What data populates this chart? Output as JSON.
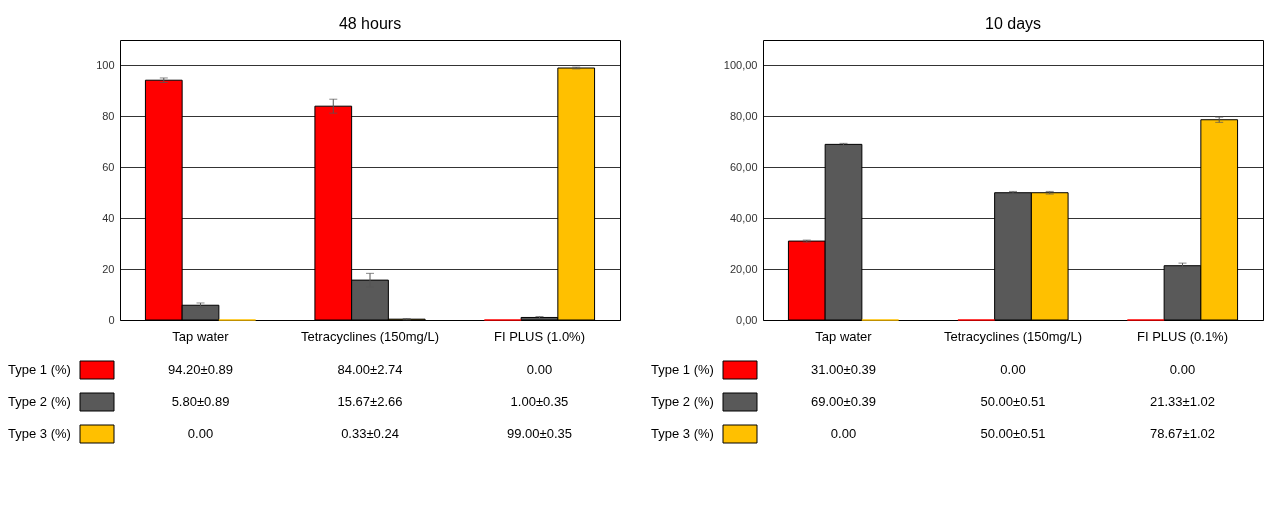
{
  "chart_data": [
    {
      "type": "bar",
      "title": "48 hours",
      "categories": [
        "Tap water",
        "Tetracyclines (150mg/L)",
        "FI PLUS (1.0%)"
      ],
      "ylim": [
        0,
        110
      ],
      "yticks": [
        0,
        20,
        40,
        60,
        80,
        100
      ],
      "grid": "y",
      "legend": "bottom",
      "series": [
        {
          "name": "Type 1 (%)",
          "color": "#ff0000",
          "values": [
            94.2,
            84.0,
            0.0
          ],
          "errors": [
            0.89,
            2.74,
            null
          ],
          "value_labels": [
            "94.20±0.89",
            "84.00±2.74",
            "0.00"
          ]
        },
        {
          "name": "Type 2 (%)",
          "color": "#595959",
          "values": [
            5.8,
            15.67,
            1.0
          ],
          "errors": [
            0.89,
            2.66,
            0.35
          ],
          "value_labels": [
            "5.80±0.89",
            "15.67±2.66",
            "1.00±0.35"
          ]
        },
        {
          "name": "Type 3 (%)",
          "color": "#ffc000",
          "values": [
            0.0,
            0.33,
            99.0
          ],
          "errors": [
            null,
            0.24,
            0.35
          ],
          "value_labels": [
            "0.00",
            "0.33±0.24",
            "99.00±0.35"
          ]
        }
      ]
    },
    {
      "type": "bar",
      "title": "10 days",
      "categories": [
        "Tap water",
        "Tetracyclines (150mg/L)",
        "FI PLUS (0.1%)"
      ],
      "ylim": [
        0,
        110
      ],
      "yticks": [
        {
          "value": 0,
          "label": "0,00"
        },
        {
          "value": 20,
          "label": "20,00"
        },
        {
          "value": 40,
          "label": "40,00"
        },
        {
          "value": 60,
          "label": "60,00"
        },
        {
          "value": 80,
          "label": "80,00"
        },
        {
          "value": 100,
          "label": "100,00"
        }
      ],
      "grid": "y",
      "legend": "bottom",
      "series": [
        {
          "name": "Type 1 (%)",
          "color": "#ff0000",
          "values": [
            31.0,
            0.0,
            0.0
          ],
          "errors": [
            0.39,
            null,
            null
          ],
          "value_labels": [
            "31.00±0.39",
            "0.00",
            "0.00"
          ]
        },
        {
          "name": "Type 2 (%)",
          "color": "#595959",
          "values": [
            69.0,
            50.0,
            21.33
          ],
          "errors": [
            0.39,
            0.51,
            1.02
          ],
          "value_labels": [
            "69.00±0.39",
            "50.00±0.51",
            "21.33±1.02"
          ]
        },
        {
          "name": "Type 3 (%)",
          "color": "#ffc000",
          "values": [
            0.0,
            50.0,
            78.67
          ],
          "errors": [
            null,
            0.51,
            1.02
          ],
          "value_labels": [
            "0.00",
            "50.00±0.51",
            "78.67±1.02"
          ]
        }
      ]
    }
  ]
}
